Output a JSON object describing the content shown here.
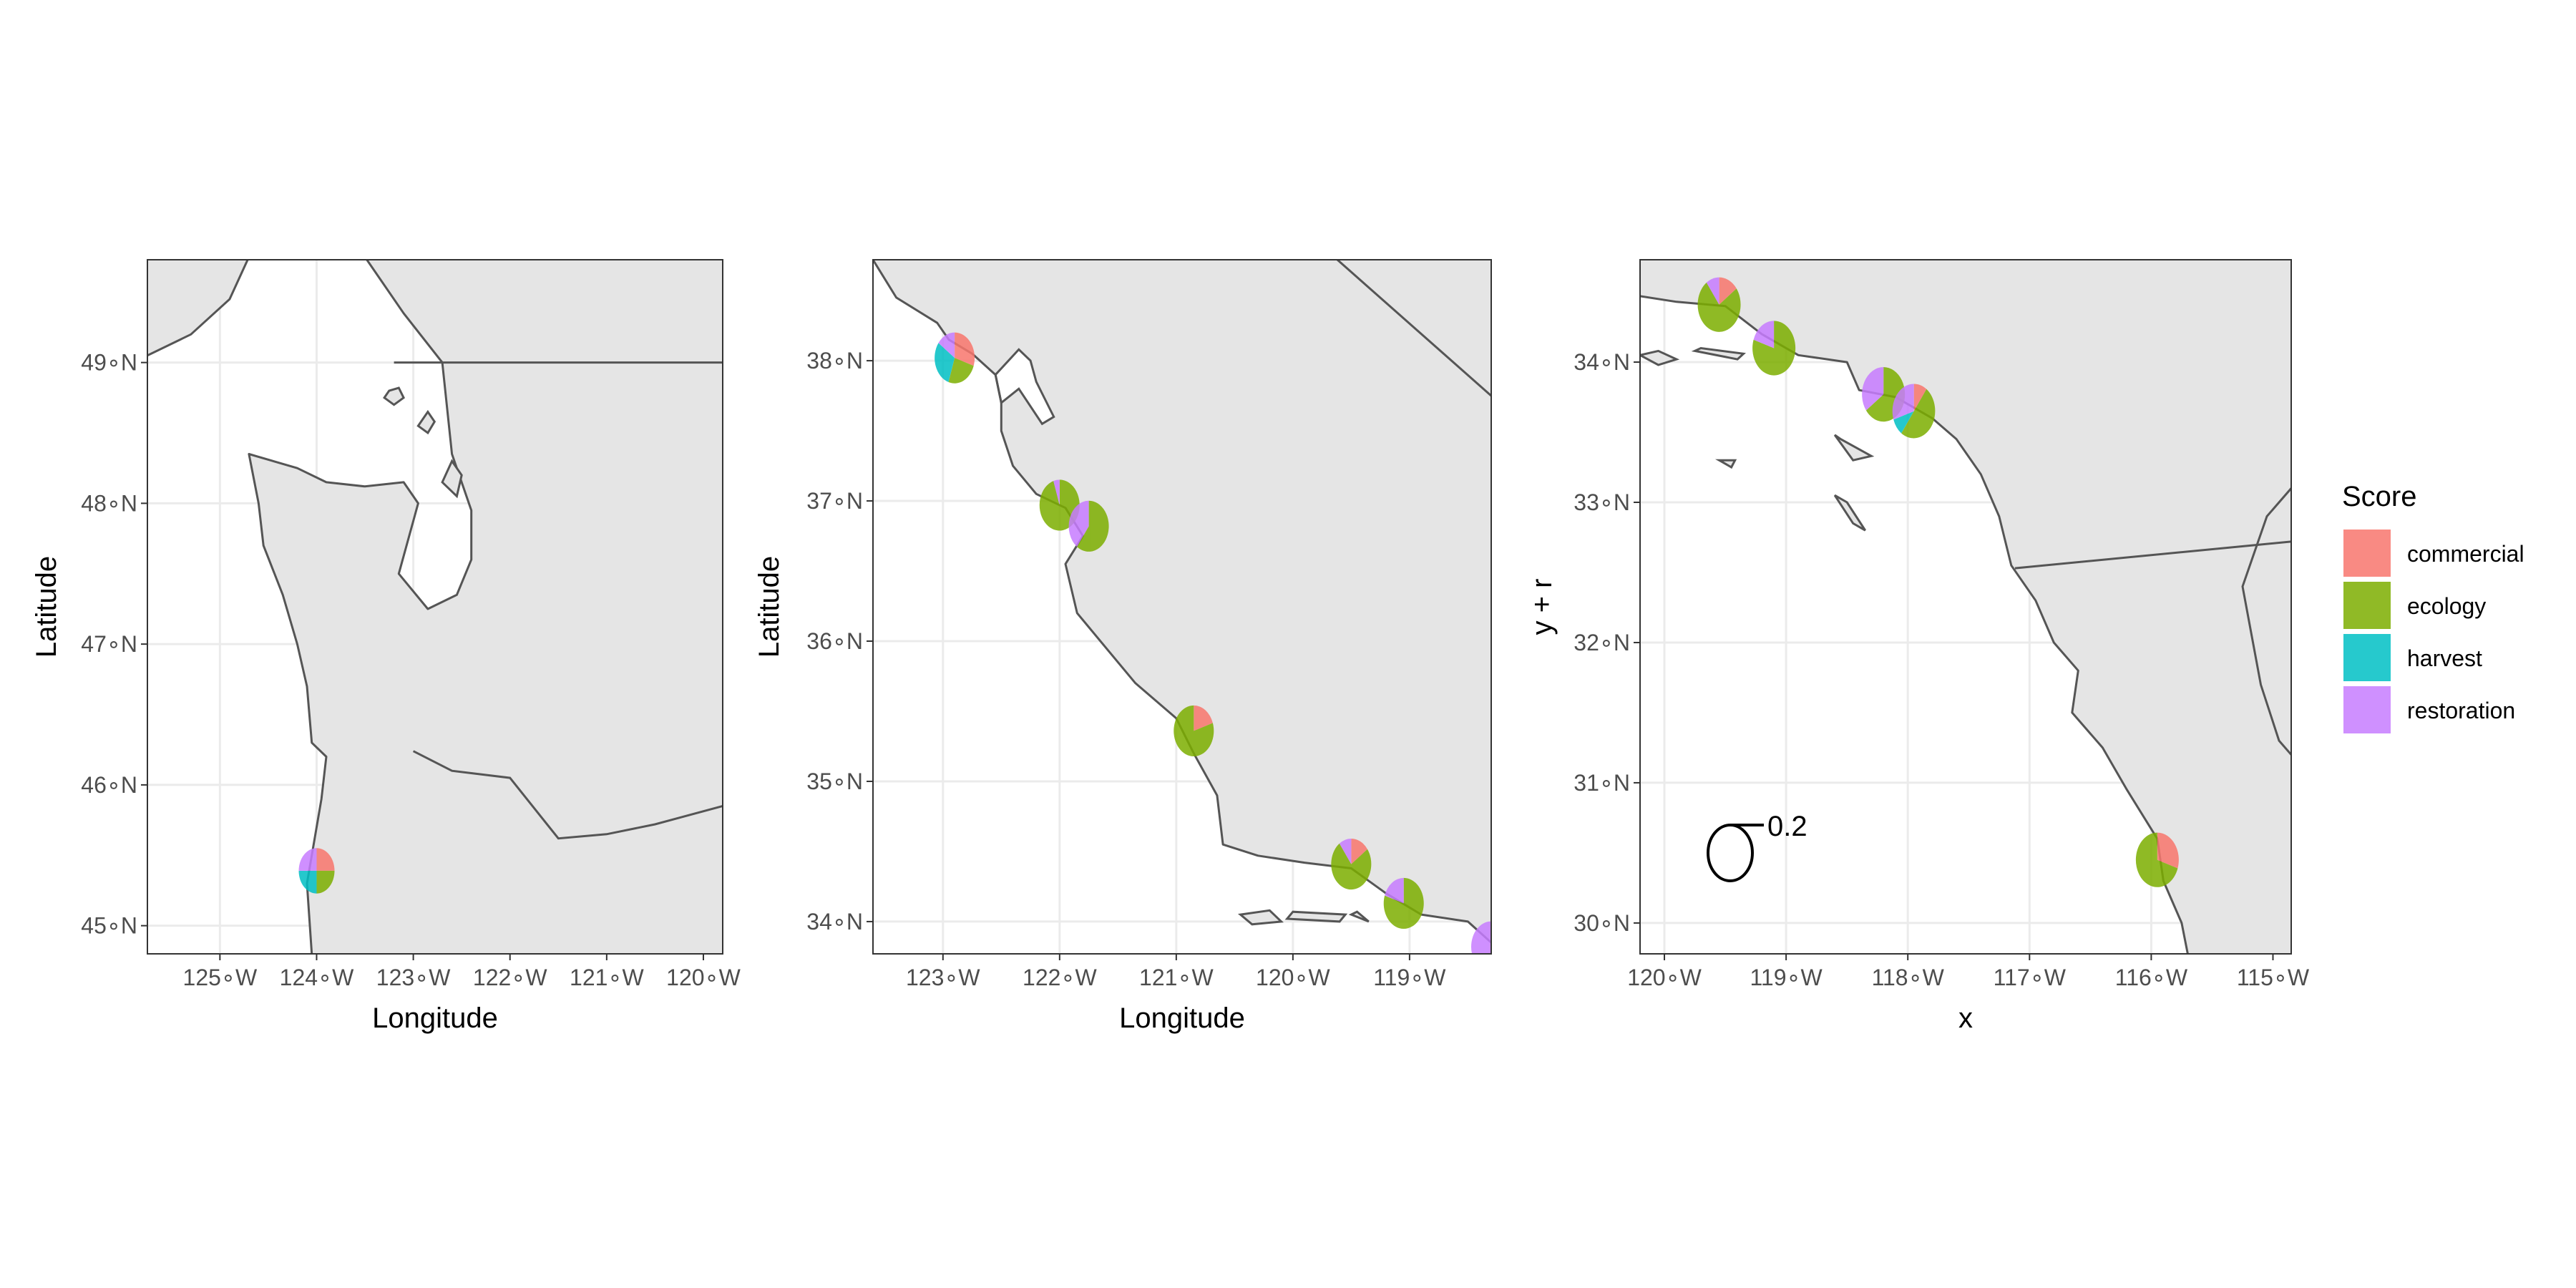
{
  "colors": {
    "commercial": "#F8766D",
    "ecology": "#7CAE00",
    "harvest": "#00BFC4",
    "restoration": "#C77CFF",
    "land": "#e5e5e5",
    "water": "#ffffff",
    "coast": "#555555",
    "grid": "#ebebeb"
  },
  "legend": {
    "title": "Score",
    "items": [
      {
        "key": "commercial",
        "label": "commercial"
      },
      {
        "key": "ecology",
        "label": "ecology"
      },
      {
        "key": "harvest",
        "label": "harvest"
      },
      {
        "key": "restoration",
        "label": "restoration"
      }
    ]
  },
  "panels": [
    {
      "xlabel": "Longitude",
      "ylabel": "Latitude",
      "xlim": [
        -125.75,
        -119.8
      ],
      "ylim": [
        44.8,
        49.73
      ],
      "xticks": [
        {
          "v": -125,
          "label": "125∘W"
        },
        {
          "v": -124,
          "label": "124∘W"
        },
        {
          "v": -123,
          "label": "123∘W"
        },
        {
          "v": -122,
          "label": "122∘W"
        },
        {
          "v": -121,
          "label": "121∘W"
        },
        {
          "v": -120,
          "label": "120∘W"
        }
      ],
      "yticks": [
        {
          "v": 45,
          "label": "45∘N"
        },
        {
          "v": 46,
          "label": "46∘N"
        },
        {
          "v": 47,
          "label": "47∘N"
        },
        {
          "v": 48,
          "label": "48∘N"
        },
        {
          "v": 49,
          "label": "49∘N"
        }
      ],
      "sites": [
        {
          "lon": -124.0,
          "lat": 45.39,
          "commercial": 0.25,
          "ecology": 0.25,
          "harvest": 0.25,
          "restoration": 0.25
        }
      ],
      "coast": [
        [
          -124.05,
          44.8
        ],
        [
          -124.1,
          45.3
        ],
        [
          -123.95,
          45.9
        ],
        [
          -123.9,
          46.2
        ],
        [
          -124.05,
          46.3
        ],
        [
          -124.1,
          46.7
        ],
        [
          -124.2,
          47.0
        ],
        [
          -124.35,
          47.35
        ],
        [
          -124.55,
          47.7
        ],
        [
          -124.6,
          48.0
        ],
        [
          -124.7,
          48.35
        ],
        [
          -124.2,
          48.25
        ],
        [
          -123.9,
          48.15
        ],
        [
          -123.5,
          48.12
        ],
        [
          -123.1,
          48.15
        ],
        [
          -122.95,
          48.0
        ],
        [
          -123.15,
          47.5
        ],
        [
          -122.85,
          47.25
        ],
        [
          -122.55,
          47.35
        ],
        [
          -122.4,
          47.6
        ],
        [
          -122.4,
          47.95
        ],
        [
          -122.6,
          48.35
        ],
        [
          -122.7,
          49.0
        ],
        [
          -123.1,
          49.35
        ],
        [
          -123.5,
          49.75
        ]
      ],
      "land_east": [
        [
          -124.05,
          44.8
        ],
        [
          -124.1,
          45.3
        ],
        [
          -123.95,
          45.9
        ],
        [
          -123.9,
          46.2
        ],
        [
          -124.05,
          46.3
        ],
        [
          -124.1,
          46.7
        ],
        [
          -124.2,
          47.0
        ],
        [
          -124.35,
          47.35
        ],
        [
          -124.55,
          47.7
        ],
        [
          -124.6,
          48.0
        ],
        [
          -124.7,
          48.35
        ],
        [
          -124.2,
          48.25
        ],
        [
          -123.9,
          48.15
        ],
        [
          -123.5,
          48.12
        ],
        [
          -123.1,
          48.15
        ],
        [
          -122.95,
          48.0
        ],
        [
          -123.15,
          47.5
        ],
        [
          -122.85,
          47.25
        ],
        [
          -122.55,
          47.35
        ],
        [
          -122.4,
          47.6
        ],
        [
          -122.4,
          47.95
        ],
        [
          -122.6,
          48.35
        ],
        [
          -122.7,
          49.0
        ],
        [
          -123.1,
          49.35
        ],
        [
          -123.5,
          49.75
        ],
        [
          -119.8,
          49.75
        ],
        [
          -119.8,
          44.8
        ]
      ],
      "land_west": [
        [
          -125.75,
          49.05
        ],
        [
          -125.3,
          49.2
        ],
        [
          -124.9,
          49.45
        ],
        [
          -124.7,
          49.75
        ],
        [
          -125.75,
          49.75
        ]
      ],
      "islands": [
        [
          [
            -123.3,
            48.75
          ],
          [
            -123.2,
            48.7
          ],
          [
            -123.1,
            48.75
          ],
          [
            -123.15,
            48.82
          ],
          [
            -123.25,
            48.8
          ]
        ],
        [
          [
            -122.95,
            48.55
          ],
          [
            -122.85,
            48.5
          ],
          [
            -122.78,
            48.58
          ],
          [
            -122.85,
            48.65
          ]
        ],
        [
          [
            -122.7,
            48.15
          ],
          [
            -122.55,
            48.05
          ],
          [
            -122.5,
            48.2
          ],
          [
            -122.6,
            48.3
          ]
        ]
      ],
      "lines": [
        [
          [
            -123.0,
            46.24
          ],
          [
            -122.6,
            46.1
          ],
          [
            -122.0,
            46.05
          ],
          [
            -121.5,
            45.62
          ],
          [
            -121.0,
            45.65
          ],
          [
            -120.5,
            45.72
          ],
          [
            -119.8,
            45.85
          ]
        ],
        [
          [
            -123.2,
            49.0
          ],
          [
            -119.8,
            49.0
          ]
        ]
      ]
    },
    {
      "xlabel": "Longitude",
      "ylabel": "Latitude",
      "xlim": [
        -123.6,
        -118.3
      ],
      "ylim": [
        33.77,
        38.72
      ],
      "xticks": [
        {
          "v": -123,
          "label": "123∘W"
        },
        {
          "v": -122,
          "label": "122∘W"
        },
        {
          "v": -121,
          "label": "121∘W"
        },
        {
          "v": -120,
          "label": "120∘W"
        },
        {
          "v": -119,
          "label": "119∘W"
        }
      ],
      "yticks": [
        {
          "v": 34,
          "label": "34∘N"
        },
        {
          "v": 35,
          "label": "35∘N"
        },
        {
          "v": 36,
          "label": "36∘N"
        },
        {
          "v": 37,
          "label": "37∘N"
        },
        {
          "v": 38,
          "label": "38∘N"
        }
      ],
      "sites": [
        {
          "lon": -122.9,
          "lat": 38.02,
          "commercial": 0.3,
          "ecology": 0.25,
          "harvest": 0.3,
          "restoration": 0.15
        },
        {
          "lon": -122.0,
          "lat": 36.97,
          "commercial": 0.0,
          "ecology": 0.95,
          "harvest": 0.0,
          "restoration": 0.05
        },
        {
          "lon": -121.75,
          "lat": 36.82,
          "commercial": 0.0,
          "ecology": 0.6,
          "harvest": 0.0,
          "restoration": 0.4
        },
        {
          "lon": -120.85,
          "lat": 35.36,
          "commercial": 0.2,
          "ecology": 0.8,
          "harvest": 0.0,
          "restoration": 0.0
        },
        {
          "lon": -119.5,
          "lat": 34.41,
          "commercial": 0.15,
          "ecology": 0.75,
          "harvest": 0.0,
          "restoration": 0.1
        },
        {
          "lon": -119.05,
          "lat": 34.13,
          "commercial": 0.0,
          "ecology": 0.8,
          "harvest": 0.0,
          "restoration": 0.2
        },
        {
          "lon": -118.3,
          "lat": 33.82,
          "commercial": 0.0,
          "ecology": 0.0,
          "harvest": 0.0,
          "restoration": 1.0
        }
      ],
      "coast": [
        [
          -123.6,
          38.72
        ],
        [
          -123.4,
          38.45
        ],
        [
          -123.05,
          38.27
        ],
        [
          -122.95,
          38.15
        ],
        [
          -122.75,
          38.05
        ],
        [
          -122.55,
          37.9
        ],
        [
          -122.5,
          37.7
        ],
        [
          -122.5,
          37.5
        ],
        [
          -122.4,
          37.25
        ],
        [
          -122.2,
          37.05
        ],
        [
          -121.95,
          36.95
        ],
        [
          -121.8,
          36.75
        ],
        [
          -121.95,
          36.55
        ],
        [
          -121.85,
          36.2
        ],
        [
          -121.6,
          35.95
        ],
        [
          -121.35,
          35.7
        ],
        [
          -121.0,
          35.45
        ],
        [
          -120.85,
          35.2
        ],
        [
          -120.65,
          34.9
        ],
        [
          -120.6,
          34.55
        ],
        [
          -120.3,
          34.47
        ],
        [
          -119.9,
          34.42
        ],
        [
          -119.5,
          34.38
        ],
        [
          -119.2,
          34.2
        ],
        [
          -118.9,
          34.05
        ],
        [
          -118.5,
          34.0
        ],
        [
          -118.3,
          33.85
        ]
      ],
      "land_east": [
        [
          -123.6,
          38.72
        ],
        [
          -123.4,
          38.45
        ],
        [
          -123.05,
          38.27
        ],
        [
          -122.95,
          38.15
        ],
        [
          -122.75,
          38.05
        ],
        [
          -122.55,
          37.9
        ],
        [
          -122.5,
          37.7
        ],
        [
          -122.5,
          37.5
        ],
        [
          -122.4,
          37.25
        ],
        [
          -122.2,
          37.05
        ],
        [
          -121.95,
          36.95
        ],
        [
          -121.8,
          36.75
        ],
        [
          -121.95,
          36.55
        ],
        [
          -121.85,
          36.2
        ],
        [
          -121.6,
          35.95
        ],
        [
          -121.35,
          35.7
        ],
        [
          -121.0,
          35.45
        ],
        [
          -120.85,
          35.2
        ],
        [
          -120.65,
          34.9
        ],
        [
          -120.6,
          34.55
        ],
        [
          -120.3,
          34.47
        ],
        [
          -119.9,
          34.42
        ],
        [
          -119.5,
          34.38
        ],
        [
          -119.2,
          34.2
        ],
        [
          -118.9,
          34.05
        ],
        [
          -118.5,
          34.0
        ],
        [
          -118.3,
          33.85
        ],
        [
          -118.3,
          38.72
        ]
      ],
      "land_west": [],
      "islands": [
        [
          [
            -120.45,
            34.05
          ],
          [
            -120.35,
            33.98
          ],
          [
            -120.1,
            34.0
          ],
          [
            -120.2,
            34.08
          ]
        ],
        [
          [
            -120.05,
            34.02
          ],
          [
            -119.6,
            34.0
          ],
          [
            -119.55,
            34.05
          ],
          [
            -120.0,
            34.07
          ]
        ],
        [
          [
            -119.5,
            34.05
          ],
          [
            -119.35,
            34.0
          ],
          [
            -119.45,
            34.07
          ]
        ]
      ],
      "bay": [
        [
          -122.55,
          37.9
        ],
        [
          -122.35,
          38.08
        ],
        [
          -122.25,
          38.0
        ],
        [
          -122.2,
          37.85
        ],
        [
          -122.05,
          37.6
        ],
        [
          -122.15,
          37.55
        ],
        [
          -122.35,
          37.8
        ],
        [
          -122.5,
          37.7
        ]
      ],
      "lines": [
        [
          [
            -120.0,
            39.0
          ],
          [
            -118.3,
            37.75
          ]
        ]
      ]
    },
    {
      "xlabel": "x",
      "ylabel": "y + r",
      "xlim": [
        -120.2,
        -114.85
      ],
      "ylim": [
        29.78,
        34.73
      ],
      "xticks": [
        {
          "v": -120,
          "label": "120∘W"
        },
        {
          "v": -119,
          "label": "119∘W"
        },
        {
          "v": -118,
          "label": "118∘W"
        },
        {
          "v": -117,
          "label": "117∘W"
        },
        {
          "v": -116,
          "label": "116∘W"
        },
        {
          "v": -115,
          "label": "115∘W"
        }
      ],
      "yticks": [
        {
          "v": 30,
          "label": "30∘N"
        },
        {
          "v": 31,
          "label": "31∘N"
        },
        {
          "v": 32,
          "label": "32∘N"
        },
        {
          "v": 33,
          "label": "33∘N"
        },
        {
          "v": 34,
          "label": "34∘N"
        }
      ],
      "sites": [
        {
          "lon": -119.55,
          "lat": 34.41,
          "commercial": 0.15,
          "ecology": 0.75,
          "harvest": 0.0,
          "restoration": 0.1
        },
        {
          "lon": -119.1,
          "lat": 34.1,
          "commercial": 0.0,
          "ecology": 0.8,
          "harvest": 0.0,
          "restoration": 0.2
        },
        {
          "lon": -118.2,
          "lat": 33.77,
          "commercial": 0.0,
          "ecology": 0.65,
          "harvest": 0.0,
          "restoration": 0.35
        },
        {
          "lon": -117.95,
          "lat": 33.65,
          "commercial": 0.1,
          "ecology": 0.5,
          "harvest": 0.1,
          "restoration": 0.3
        },
        {
          "lon": -115.95,
          "lat": 30.45,
          "commercial": 0.3,
          "ecology": 0.7,
          "harvest": 0.0,
          "restoration": 0.0
        }
      ],
      "coast": [
        [
          -120.2,
          34.47
        ],
        [
          -119.9,
          34.43
        ],
        [
          -119.5,
          34.4
        ],
        [
          -119.2,
          34.2
        ],
        [
          -118.9,
          34.05
        ],
        [
          -118.5,
          34.0
        ],
        [
          -118.4,
          33.8
        ],
        [
          -118.1,
          33.75
        ],
        [
          -117.8,
          33.6
        ],
        [
          -117.6,
          33.45
        ],
        [
          -117.4,
          33.2
        ],
        [
          -117.25,
          32.9
        ],
        [
          -117.15,
          32.55
        ],
        [
          -116.95,
          32.3
        ],
        [
          -116.8,
          32.0
        ],
        [
          -116.6,
          31.8
        ],
        [
          -116.65,
          31.5
        ],
        [
          -116.4,
          31.25
        ],
        [
          -116.2,
          30.95
        ],
        [
          -115.95,
          30.6
        ],
        [
          -115.9,
          30.3
        ],
        [
          -115.75,
          30.0
        ],
        [
          -115.7,
          29.78
        ]
      ],
      "land_east": [
        [
          -120.2,
          34.47
        ],
        [
          -119.9,
          34.43
        ],
        [
          -119.5,
          34.4
        ],
        [
          -119.2,
          34.2
        ],
        [
          -118.9,
          34.05
        ],
        [
          -118.5,
          34.0
        ],
        [
          -118.4,
          33.8
        ],
        [
          -118.1,
          33.75
        ],
        [
          -117.8,
          33.6
        ],
        [
          -117.6,
          33.45
        ],
        [
          -117.4,
          33.2
        ],
        [
          -117.25,
          32.9
        ],
        [
          -117.15,
          32.55
        ],
        [
          -116.95,
          32.3
        ],
        [
          -116.8,
          32.0
        ],
        [
          -116.6,
          31.8
        ],
        [
          -116.65,
          31.5
        ],
        [
          -116.4,
          31.25
        ],
        [
          -116.2,
          30.95
        ],
        [
          -115.95,
          30.6
        ],
        [
          -115.9,
          30.3
        ],
        [
          -115.75,
          30.0
        ],
        [
          -115.7,
          29.78
        ],
        [
          -114.85,
          29.78
        ],
        [
          -114.85,
          34.73
        ],
        [
          -120.2,
          34.73
        ]
      ],
      "land_west": [],
      "water_east": [
        [
          -114.85,
          33.1
        ],
        [
          -115.05,
          32.9
        ],
        [
          -115.25,
          32.4
        ],
        [
          -115.1,
          31.7
        ],
        [
          -114.95,
          31.3
        ],
        [
          -114.85,
          31.2
        ]
      ],
      "islands": [
        [
          [
            -120.2,
            34.05
          ],
          [
            -120.05,
            33.98
          ],
          [
            -119.9,
            34.02
          ],
          [
            -120.05,
            34.08
          ]
        ],
        [
          [
            -119.75,
            34.08
          ],
          [
            -119.4,
            34.02
          ],
          [
            -119.35,
            34.06
          ],
          [
            -119.7,
            34.1
          ]
        ],
        [
          [
            -119.55,
            33.3
          ],
          [
            -119.45,
            33.25
          ],
          [
            -119.42,
            33.3
          ]
        ],
        [
          [
            -118.6,
            33.48
          ],
          [
            -118.45,
            33.3
          ],
          [
            -118.3,
            33.33
          ],
          [
            -118.55,
            33.45
          ]
        ],
        [
          [
            -118.6,
            33.05
          ],
          [
            -118.45,
            32.85
          ],
          [
            -118.35,
            32.8
          ],
          [
            -118.5,
            33.0
          ]
        ]
      ],
      "lines": [
        [
          [
            -117.12,
            32.53
          ],
          [
            -114.85,
            32.72
          ]
        ]
      ],
      "scale": {
        "label": "0.2",
        "lon": -119.55,
        "lat": 30.5
      }
    }
  ]
}
